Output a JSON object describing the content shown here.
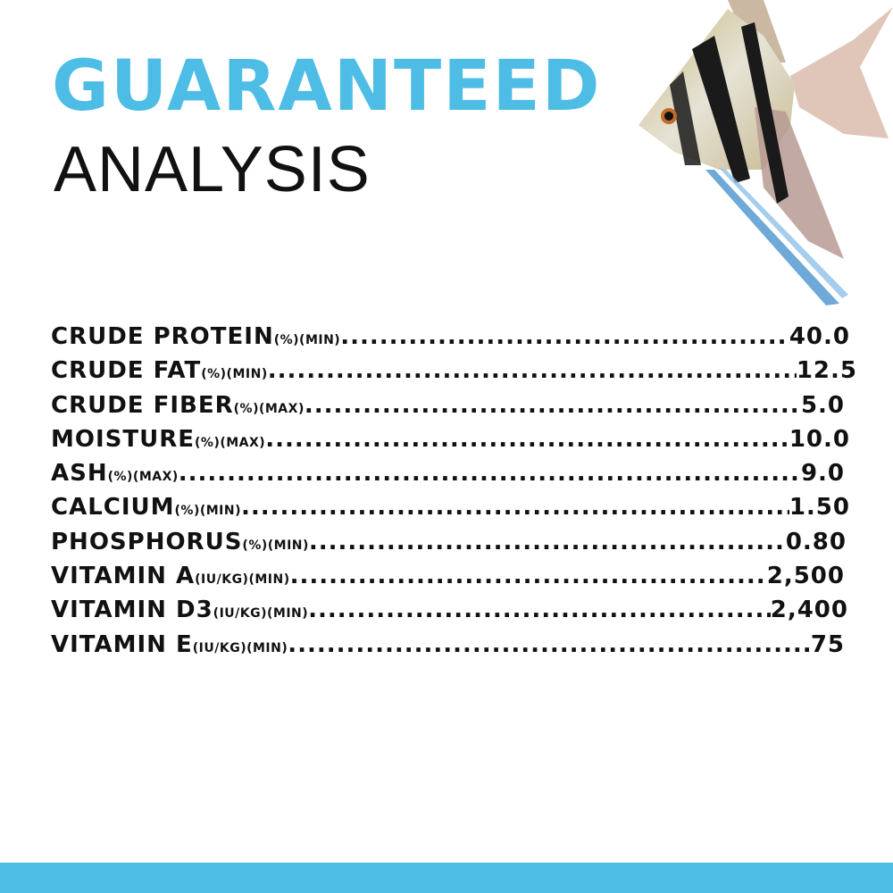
{
  "heading": {
    "line1": "GUARANTEED",
    "line2": "ANALYSIS"
  },
  "colors": {
    "accent": "#4dbde6",
    "text": "#111111"
  },
  "image": "angelfish-photo",
  "rows": [
    {
      "name": "CRUDE PROTEIN",
      "unit": "(%)(MIN)",
      "value": "40.0"
    },
    {
      "name": "CRUDE FAT",
      "unit": "(%)(MIN)",
      "value": "12.5"
    },
    {
      "name": "CRUDE FIBER",
      "unit": "(%)(MAX)",
      "value": "5.0"
    },
    {
      "name": "MOISTURE",
      "unit": "(%)(MAX)",
      "value": "10.0"
    },
    {
      "name": "ASH",
      "unit": "(%)(MAX)",
      "value": "9.0"
    },
    {
      "name": "CALCIUM",
      "unit": "(%)(MIN)",
      "value": "1.50"
    },
    {
      "name": "PHOSPHORUS",
      "unit": "(%)(MIN)",
      "value": "0.80"
    },
    {
      "name": "VITAMIN A",
      "unit": "(IU/KG)(MIN)",
      "value": "2,500"
    },
    {
      "name": "VITAMIN D3",
      "unit": "(IU/KG)(MIN)",
      "value": "2,400"
    },
    {
      "name": "VITAMIN E",
      "unit": "(IU/KG)(MIN)",
      "value": "75"
    }
  ]
}
